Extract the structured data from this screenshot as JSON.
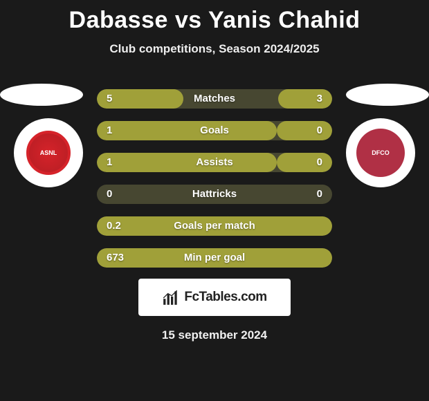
{
  "title": "Dabasse vs Yanis Chahid",
  "subtitle": "Club competitions, Season 2024/2025",
  "date": "15 september 2024",
  "branding": {
    "label": "FcTables.com"
  },
  "clubs": {
    "left": {
      "abbrev": "ASNL",
      "logo_bg": "#d6232a"
    },
    "right": {
      "abbrev": "DFCO",
      "logo_bg": "#b03045"
    }
  },
  "colors": {
    "bar_fill": "#a0a039",
    "bar_bg": "#474731",
    "page_bg": "#1a1a1a"
  },
  "rows": [
    {
      "label": "Matches",
      "left_val": "5",
      "right_val": "3",
      "left_w": 125,
      "right_w": 78
    },
    {
      "label": "Goals",
      "left_val": "1",
      "right_val": "0",
      "left_w": 260,
      "right_w": 80
    },
    {
      "label": "Assists",
      "left_val": "1",
      "right_val": "0",
      "left_w": 260,
      "right_w": 80
    },
    {
      "label": "Hattricks",
      "left_val": "0",
      "right_val": "0",
      "left_w": 0,
      "right_w": 0
    },
    {
      "label": "Goals per match",
      "left_val": "0.2",
      "right_val": "",
      "left_w": 340,
      "right_w": 0
    },
    {
      "label": "Min per goal",
      "left_val": "673",
      "right_val": "",
      "left_w": 340,
      "right_w": 0
    }
  ]
}
